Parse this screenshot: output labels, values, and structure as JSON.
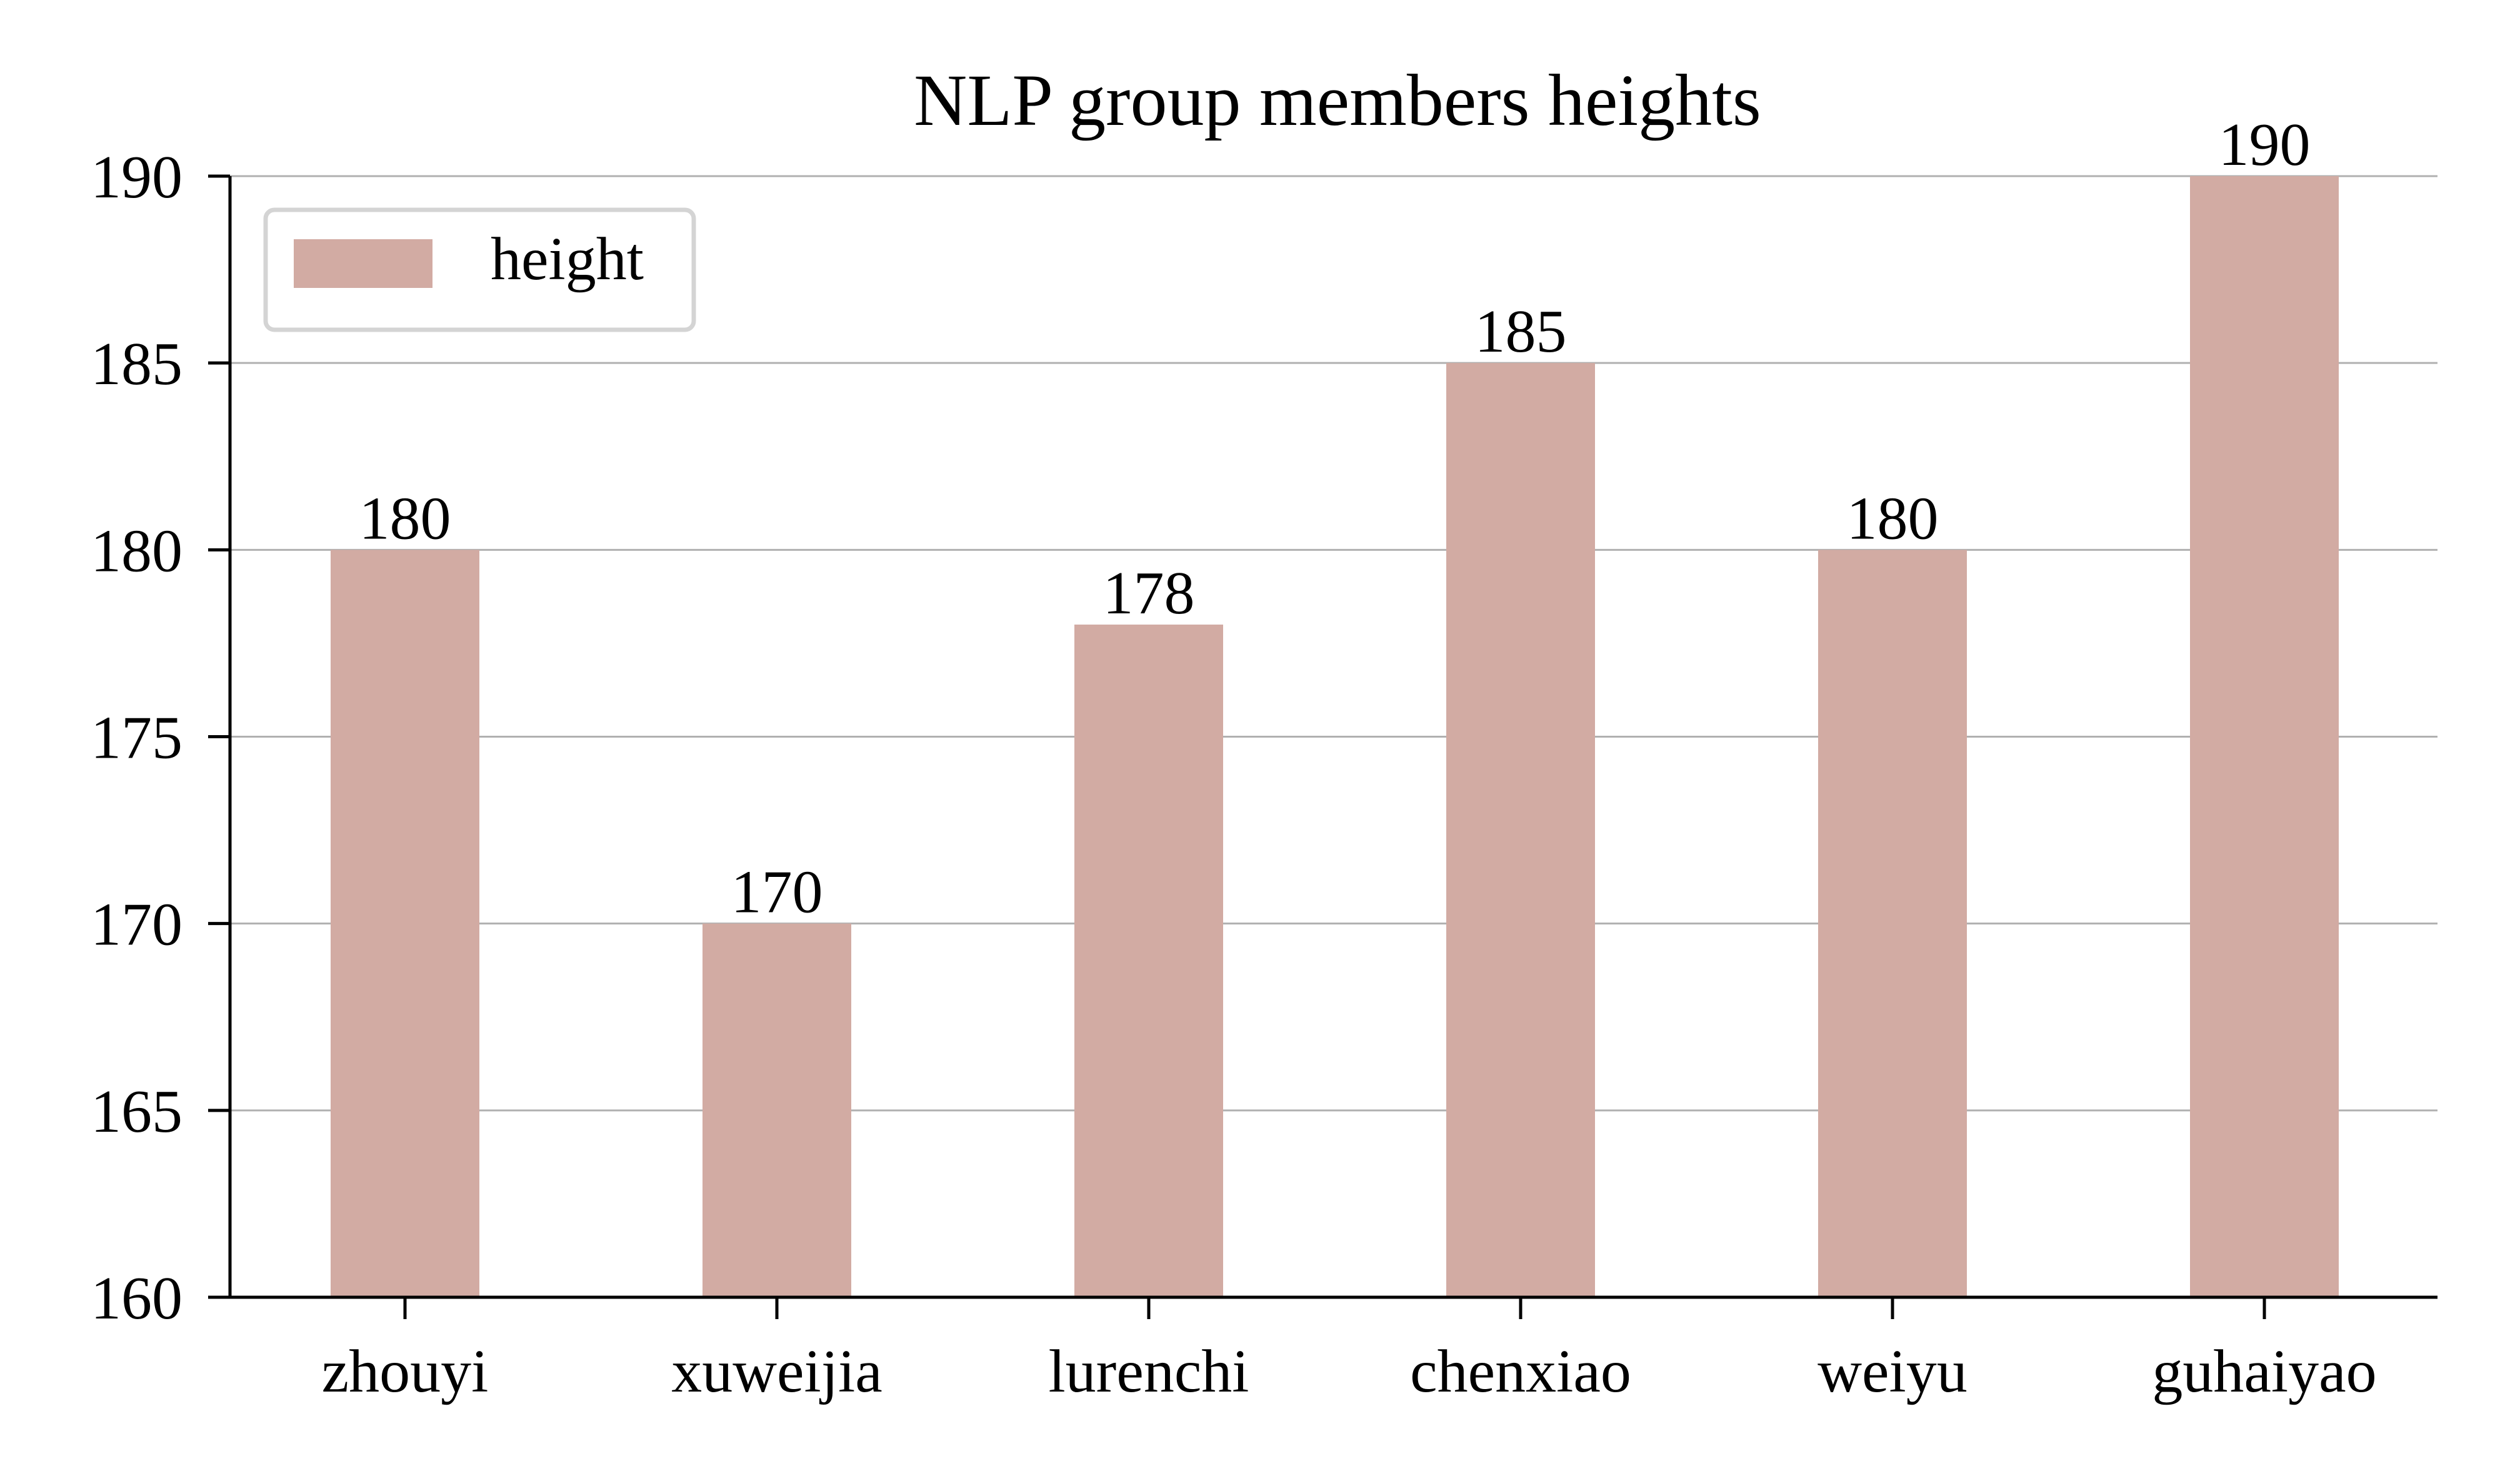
{
  "chart_data": {
    "type": "bar",
    "title": "NLP group members heights",
    "xlabel": "",
    "ylabel": "",
    "categories": [
      "zhouyi",
      "xuweijia",
      "lurenchi",
      "chenxiao",
      "weiyu",
      "guhaiyao"
    ],
    "series": [
      {
        "name": "height",
        "values": [
          180,
          170,
          178,
          185,
          180,
          190
        ],
        "color": "#D2ABA3"
      }
    ],
    "data_labels": [
      "180",
      "170",
      "178",
      "185",
      "180",
      "190"
    ],
    "yticks": [
      "160",
      "165",
      "170",
      "175",
      "180",
      "185",
      "190"
    ],
    "ylim": [
      160,
      190
    ],
    "grid": "horizontal",
    "legend_position": "top-left"
  }
}
